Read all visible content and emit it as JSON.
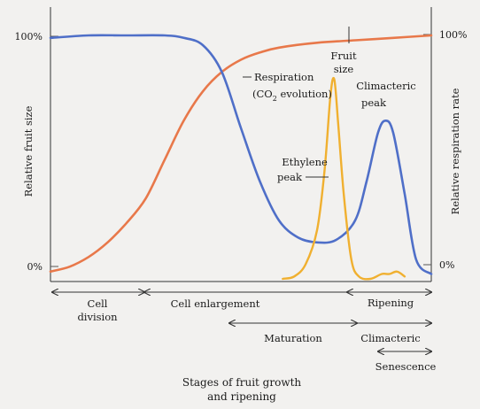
{
  "chart_data": {
    "type": "line",
    "title": "",
    "y_left_label": "Relative fruit size",
    "y_right_label": "Relative respiration rate",
    "y_ticks_left": [
      "100%",
      "0%"
    ],
    "y_ticks_right": [
      "100%",
      "0%"
    ],
    "ylim": [
      0,
      100
    ],
    "xlim": [
      0,
      100
    ],
    "grid": false,
    "series": [
      {
        "name": "Fruit size",
        "color": "#e8784a",
        "x": [
          0,
          5,
          10,
          15,
          20,
          25,
          30,
          35,
          40,
          45,
          50,
          55,
          60,
          70,
          80,
          90,
          100
        ],
        "y": [
          3,
          5,
          9,
          15,
          23,
          33,
          49,
          65,
          77,
          85,
          90,
          93,
          95,
          97,
          98,
          99,
          100
        ]
      },
      {
        "name": "Respiration",
        "color": "#4f6fc8",
        "x": [
          0,
          10,
          20,
          30,
          35,
          40,
          45,
          50,
          55,
          60,
          65,
          70,
          75,
          80,
          83,
          86,
          88,
          90,
          93,
          96,
          100
        ],
        "y": [
          99,
          100,
          100,
          100,
          99,
          96,
          85,
          62,
          40,
          24,
          17,
          15,
          16,
          24,
          40,
          60,
          65,
          60,
          35,
          8,
          2
        ]
      },
      {
        "name": "Ethylene",
        "color": "#f0b030",
        "x": [
          61,
          64,
          67,
          70,
          72,
          73.5,
          74.5,
          75.5,
          77,
          79,
          81,
          84,
          87,
          89,
          91,
          93
        ],
        "y": [
          0,
          1,
          6,
          20,
          45,
          75,
          82,
          65,
          35,
          8,
          1,
          0,
          2,
          2,
          3,
          1
        ]
      }
    ],
    "annotations": [
      {
        "text_lines": [
          "Fruit",
          "size"
        ],
        "series": "Fruit size"
      },
      {
        "text_lines": [
          "Respiration",
          "(CO₂ evolution)"
        ],
        "series": "Respiration"
      },
      {
        "text_lines": [
          "Climacteric",
          "peak"
        ],
        "series": "Respiration"
      },
      {
        "text_lines": [
          "Ethylene",
          "peak"
        ],
        "series": "Ethylene"
      }
    ],
    "stages": [
      {
        "label": "Cell division"
      },
      {
        "label": "Cell enlargement"
      },
      {
        "label": "Maturation"
      },
      {
        "label": "Ripening"
      },
      {
        "label": "Climacteric"
      },
      {
        "label": "Senescence"
      }
    ],
    "x_caption": "Stages of fruit growth and ripening"
  },
  "labels": {
    "y_left": "Relative fruit size",
    "y_right": "Relative respiration rate",
    "tick_left_top": "100%",
    "tick_left_bottom": "0%",
    "tick_right_top": "100%",
    "tick_right_bottom": "0%",
    "fruit_size_1": "Fruit",
    "fruit_size_2": "size",
    "resp_1": "Respiration",
    "resp_2_pre": "(CO",
    "resp_2_sub": "2",
    "resp_2_post": " evolution)",
    "clim_1": "Climacteric",
    "clim_2": "peak",
    "eth_1": "Ethylene",
    "eth_2": "peak",
    "stage_cell_div_1": "Cell",
    "stage_cell_div_2": "division",
    "stage_cell_enl": "Cell enlargement",
    "stage_maturation": "Maturation",
    "stage_ripening": "Ripening",
    "stage_climacteric": "Climacteric",
    "stage_senescence": "Senescence",
    "caption_1": "Stages of fruit growth",
    "caption_2": "and ripening"
  }
}
